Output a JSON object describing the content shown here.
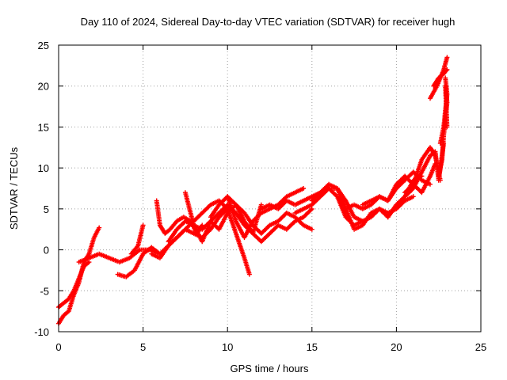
{
  "chart_data": {
    "type": "scatter",
    "title": "Day 110 of 2024, Sidereal Day-to-day VTEC variation (SDTVAR) for receiver hugh",
    "xlabel": "GPS time / hours",
    "ylabel": "SDTVAR / TECUs",
    "xlim": [
      0,
      25
    ],
    "ylim": [
      -10,
      25
    ],
    "x_ticks": [
      0,
      5,
      10,
      15,
      20,
      25
    ],
    "y_ticks": [
      -10,
      -5,
      0,
      5,
      10,
      15,
      20,
      25
    ],
    "grid": true,
    "legend": "none",
    "colors": {
      "series": "#ff0000",
      "grid": "#a0a0a0",
      "axis": "#000000"
    },
    "series": [
      {
        "x": [
          0,
          0.3,
          0.6,
          0.9,
          1.2,
          1.5,
          1.8,
          2.1,
          2.4
        ],
        "y": [
          -9,
          -8,
          -7.5,
          -5.5,
          -4,
          -1.5,
          -0.5,
          1.5,
          2.7
        ]
      },
      {
        "x": [
          0,
          0.3,
          0.6,
          0.9,
          1.2,
          1.5,
          1.8
        ],
        "y": [
          -7,
          -6.5,
          -6,
          -5,
          -3.5,
          -2,
          -1.5
        ]
      },
      {
        "x": [
          1.2,
          1.8,
          2.4,
          3,
          3.6,
          4.2,
          4.8,
          5.4,
          6,
          6.3
        ],
        "y": [
          -1.5,
          -1,
          -0.5,
          -1,
          -1.5,
          -1,
          0,
          0,
          -0.5,
          0
        ]
      },
      {
        "x": [
          3.5,
          4.0,
          4.5,
          5.0,
          5.5,
          6.0,
          6.5,
          7.0,
          7.5,
          8.0,
          8.5,
          9.0,
          9.5,
          10.0
        ],
        "y": [
          -3,
          -3.3,
          -2.5,
          -0.5,
          0.3,
          -0.5,
          0.5,
          1.5,
          2.5,
          3.5,
          4.5,
          5.5,
          6,
          5
        ]
      },
      {
        "x": [
          4.3,
          4.7,
          5.0
        ],
        "y": [
          -0.5,
          0.5,
          3
        ]
      },
      {
        "x": [
          5.8,
          6.0,
          6.3,
          6.6,
          7.0,
          7.4,
          7.8,
          8.2,
          8.5
        ],
        "y": [
          6,
          3,
          2,
          2.5,
          3.5,
          4,
          3.5,
          2,
          3
        ]
      },
      {
        "x": [
          5.5,
          6.0,
          6.5,
          7.0,
          7.5,
          8.0,
          8.5,
          9.0,
          9.5,
          10.0,
          10.5,
          11.0,
          11.3
        ],
        "y": [
          -0.5,
          -1,
          0.5,
          1.5,
          2.5,
          2,
          1.5,
          2.5,
          4,
          5,
          2,
          -1,
          -3
        ]
      },
      {
        "x": [
          6.5,
          7.0,
          7.5,
          8.0,
          8.5,
          9.0,
          9.5,
          10.0,
          10.5,
          11.0,
          11.5,
          12.0,
          12.5,
          13.0,
          13.5,
          14.0,
          14.5,
          15.0
        ],
        "y": [
          1,
          2.5,
          3.5,
          3,
          2.5,
          3.5,
          4.5,
          5.5,
          4.5,
          3,
          2,
          1,
          2,
          3,
          2.5,
          3.5,
          4,
          5
        ]
      },
      {
        "x": [
          7.5,
          8.0,
          8.5,
          9.0,
          9.5,
          10.0,
          10.5,
          11.0,
          11.5,
          12.0
        ],
        "y": [
          7,
          3,
          1,
          3.5,
          2.5,
          4.5,
          5.5,
          3.5,
          2,
          5.5
        ]
      },
      {
        "x": [
          9.0,
          9.5,
          10.0,
          10.5,
          11.0,
          11.5,
          12.0,
          12.5,
          13.0,
          13.5,
          14.0,
          14.5
        ],
        "y": [
          4,
          5.5,
          6.5,
          3.5,
          1.5,
          3.5,
          4.5,
          5,
          5.5,
          6.5,
          7,
          7.5
        ]
      },
      {
        "x": [
          10.0,
          10.5,
          11.0,
          11.5,
          12.0,
          12.5,
          13.0,
          13.5,
          14.0,
          14.5,
          15.0
        ],
        "y": [
          6.5,
          5.5,
          4.5,
          3,
          2,
          3,
          3.5,
          4.5,
          4,
          3,
          2.5
        ]
      },
      {
        "x": [
          12.0,
          12.5,
          13.0,
          13.5,
          14.0,
          14.5,
          15.0,
          15.5,
          16.0,
          16.5,
          17.0,
          17.5,
          18.0
        ],
        "y": [
          5,
          5.5,
          5,
          6,
          5.5,
          6,
          6.5,
          7,
          7.5,
          6.5,
          4,
          3,
          3.5
        ]
      },
      {
        "x": [
          14.0,
          14.5,
          15.0,
          15.5,
          16.0,
          16.5,
          17.0,
          17.5,
          18.0,
          18.5,
          19.0,
          19.5,
          20.0,
          20.5,
          21.0
        ],
        "y": [
          4.5,
          5,
          5.5,
          6.5,
          7.5,
          7.5,
          6,
          4,
          3.5,
          4,
          5,
          4.5,
          5,
          6,
          6.5
        ]
      },
      {
        "x": [
          15.0,
          15.5,
          16.0,
          16.5,
          17.0,
          17.5,
          18.0,
          18.5,
          19.0,
          19.5,
          20.0,
          20.5,
          21.0,
          21.5
        ],
        "y": [
          6,
          7,
          8,
          7.5,
          5,
          2.5,
          3,
          4.5,
          5,
          4,
          5.5,
          6.5,
          8.5,
          9
        ]
      },
      {
        "x": [
          17.0,
          17.5,
          18.0,
          18.5,
          19.0,
          19.5,
          20.0,
          20.5,
          21.0,
          21.5,
          22.0,
          22.3
        ],
        "y": [
          5,
          5.5,
          5,
          5.5,
          6.5,
          6,
          8,
          9,
          8,
          7,
          9,
          10.5
        ]
      },
      {
        "x": [
          18.0,
          18.5,
          19.0,
          19.5,
          20.0,
          20.5,
          21.0,
          21.5,
          22.0
        ],
        "y": [
          5.5,
          6,
          6.5,
          6,
          7.5,
          8.5,
          9.5,
          8.5,
          8
        ]
      },
      {
        "x": [
          19.5,
          20.0,
          20.5,
          21.0,
          21.5,
          22.0,
          22.3,
          22.5,
          22.8
        ],
        "y": [
          4,
          5.5,
          6.5,
          7.5,
          9.5,
          11.5,
          12,
          8.5,
          13
        ]
      },
      {
        "x": [
          20.5,
          21.0,
          21.5,
          22.0,
          22.3,
          22.6
        ],
        "y": [
          7,
          8,
          11,
          12.5,
          11.5,
          8.5
        ]
      },
      {
        "x": [
          22.0,
          22.4,
          22.8,
          23.0
        ],
        "y": [
          18.5,
          20,
          22,
          23.5
        ]
      },
      {
        "x": [
          22.2,
          22.5,
          22.8,
          23.0
        ],
        "y": [
          20,
          21,
          21.5,
          22
        ]
      },
      {
        "x": [
          22.5,
          22.7,
          22.8,
          22.9,
          23.0,
          22.9,
          23.0
        ],
        "y": [
          9,
          11,
          14,
          16,
          18,
          20,
          15
        ]
      },
      {
        "x": [
          22.6,
          22.8,
          22.9,
          23.0,
          22.9
        ],
        "y": [
          13,
          15,
          17,
          19,
          21
        ]
      }
    ]
  }
}
